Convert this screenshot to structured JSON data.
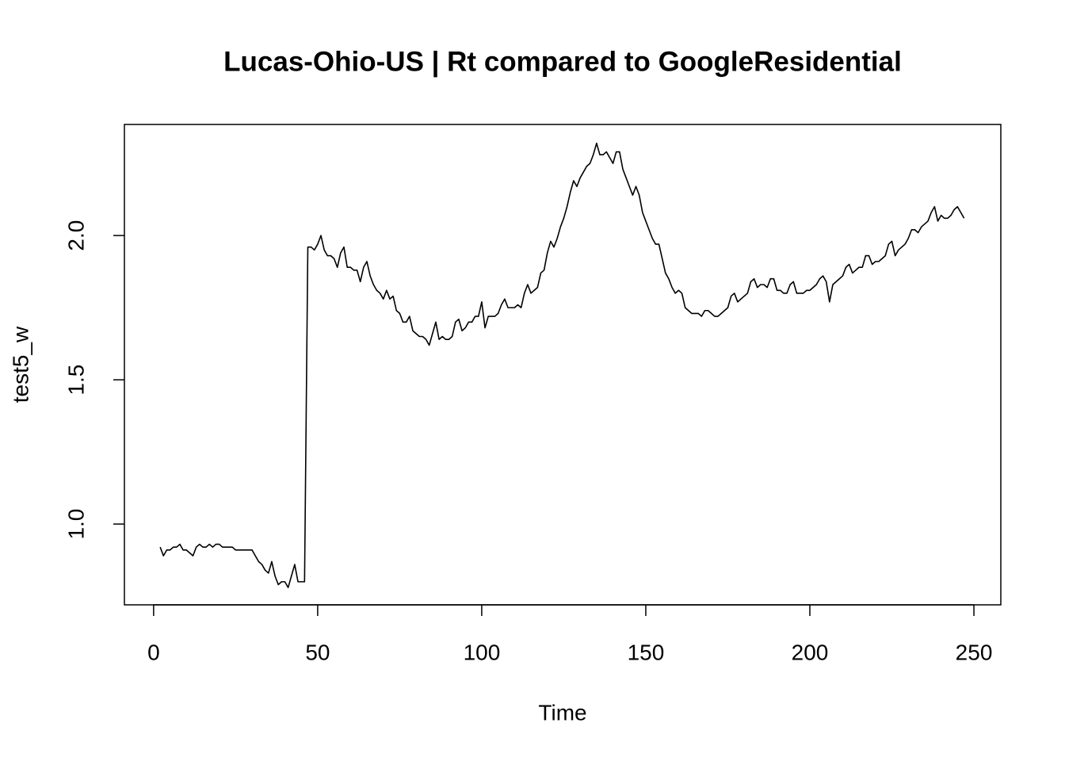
{
  "chart_data": {
    "type": "line",
    "title": "Lucas-Ohio-US | Rt compared to GoogleResidential",
    "x_label": "Time",
    "y_label": "test5_w",
    "x": [
      2,
      3,
      4,
      5,
      6,
      7,
      8,
      9,
      10,
      11,
      12,
      13,
      14,
      15,
      16,
      17,
      18,
      19,
      20,
      21,
      22,
      23,
      24,
      25,
      26,
      27,
      28,
      29,
      30,
      31,
      32,
      33,
      34,
      35,
      36,
      37,
      38,
      39,
      40,
      41,
      42,
      43,
      44,
      45,
      46,
      47,
      48,
      49,
      50,
      51,
      52,
      53,
      54,
      55,
      56,
      57,
      58,
      59,
      60,
      61,
      62,
      63,
      64,
      65,
      66,
      67,
      68,
      69,
      70,
      71,
      72,
      73,
      74,
      75,
      76,
      77,
      78,
      79,
      80,
      81,
      82,
      83,
      84,
      85,
      86,
      87,
      88,
      89,
      90,
      91,
      92,
      93,
      94,
      95,
      96,
      97,
      98,
      99,
      100,
      101,
      102,
      103,
      104,
      105,
      106,
      107,
      108,
      109,
      110,
      111,
      112,
      113,
      114,
      115,
      116,
      117,
      118,
      119,
      120,
      121,
      122,
      123,
      124,
      125,
      126,
      127,
      128,
      129,
      130,
      131,
      132,
      133,
      134,
      135,
      136,
      137,
      138,
      139,
      140,
      141,
      142,
      143,
      144,
      145,
      146,
      147,
      148,
      149,
      150,
      151,
      152,
      153,
      154,
      155,
      156,
      157,
      158,
      159,
      160,
      161,
      162,
      163,
      164,
      165,
      166,
      167,
      168,
      169,
      170,
      171,
      172,
      173,
      174,
      175,
      176,
      177,
      178,
      179,
      180,
      181,
      182,
      183,
      184,
      185,
      186,
      187,
      188,
      189,
      190,
      191,
      192,
      193,
      194,
      195,
      196,
      197,
      198,
      199,
      200,
      201,
      202,
      203,
      204,
      205,
      206,
      207,
      208,
      209,
      210,
      211,
      212,
      213,
      214,
      215,
      216,
      217,
      218,
      219,
      220,
      221,
      222,
      223,
      224,
      225,
      226,
      227,
      228,
      229,
      230,
      231,
      232,
      233,
      234,
      235,
      236,
      237,
      238,
      239,
      240,
      241,
      242,
      243,
      244,
      245,
      246,
      247
    ],
    "values": [
      0.92,
      0.89,
      0.91,
      0.91,
      0.92,
      0.92,
      0.93,
      0.91,
      0.91,
      0.9,
      0.89,
      0.92,
      0.93,
      0.92,
      0.92,
      0.93,
      0.92,
      0.93,
      0.93,
      0.92,
      0.92,
      0.92,
      0.92,
      0.91,
      0.91,
      0.91,
      0.91,
      0.91,
      0.91,
      0.89,
      0.87,
      0.86,
      0.84,
      0.83,
      0.87,
      0.82,
      0.79,
      0.8,
      0.8,
      0.78,
      0.82,
      0.86,
      0.8,
      0.8,
      0.8,
      1.96,
      1.96,
      1.95,
      1.97,
      2.0,
      1.95,
      1.93,
      1.93,
      1.92,
      1.89,
      1.94,
      1.96,
      1.89,
      1.89,
      1.88,
      1.88,
      1.84,
      1.89,
      1.91,
      1.86,
      1.83,
      1.81,
      1.8,
      1.78,
      1.81,
      1.78,
      1.79,
      1.74,
      1.73,
      1.7,
      1.7,
      1.72,
      1.67,
      1.66,
      1.65,
      1.65,
      1.64,
      1.62,
      1.66,
      1.7,
      1.64,
      1.65,
      1.64,
      1.64,
      1.65,
      1.7,
      1.71,
      1.67,
      1.68,
      1.7,
      1.7,
      1.72,
      1.72,
      1.77,
      1.68,
      1.72,
      1.72,
      1.72,
      1.73,
      1.76,
      1.78,
      1.75,
      1.75,
      1.75,
      1.76,
      1.75,
      1.8,
      1.83,
      1.8,
      1.81,
      1.82,
      1.87,
      1.88,
      1.94,
      1.98,
      1.96,
      1.99,
      2.03,
      2.06,
      2.1,
      2.15,
      2.19,
      2.17,
      2.2,
      2.22,
      2.24,
      2.25,
      2.28,
      2.32,
      2.28,
      2.28,
      2.29,
      2.27,
      2.25,
      2.29,
      2.29,
      2.23,
      2.2,
      2.17,
      2.14,
      2.17,
      2.14,
      2.08,
      2.05,
      2.02,
      1.99,
      1.97,
      1.97,
      1.92,
      1.87,
      1.85,
      1.82,
      1.8,
      1.81,
      1.8,
      1.75,
      1.74,
      1.73,
      1.73,
      1.73,
      1.72,
      1.74,
      1.74,
      1.73,
      1.72,
      1.72,
      1.73,
      1.74,
      1.75,
      1.79,
      1.8,
      1.77,
      1.78,
      1.79,
      1.8,
      1.84,
      1.85,
      1.82,
      1.83,
      1.83,
      1.82,
      1.85,
      1.85,
      1.81,
      1.81,
      1.8,
      1.8,
      1.83,
      1.84,
      1.8,
      1.8,
      1.8,
      1.81,
      1.81,
      1.82,
      1.83,
      1.85,
      1.86,
      1.84,
      1.77,
      1.83,
      1.84,
      1.85,
      1.86,
      1.89,
      1.9,
      1.87,
      1.88,
      1.89,
      1.89,
      1.93,
      1.93,
      1.9,
      1.91,
      1.91,
      1.92,
      1.93,
      1.97,
      1.98,
      1.93,
      1.95,
      1.96,
      1.97,
      1.99,
      2.02,
      2.02,
      2.01,
      2.03,
      2.04,
      2.05,
      2.08,
      2.1,
      2.05,
      2.07,
      2.06,
      2.06,
      2.07,
      2.09,
      2.1,
      2.08,
      2.06
    ],
    "color": "#000000",
    "xlim": [
      -8.9,
      258.2
    ],
    "ylim": [
      0.72,
      2.385
    ],
    "xticks": [
      0,
      50,
      100,
      150,
      200,
      250
    ],
    "yticks": [
      {
        "value": 1.0,
        "label": "1.0"
      },
      {
        "value": 1.5,
        "label": "1.5"
      },
      {
        "value": 2.0,
        "label": "2.0"
      }
    ]
  }
}
